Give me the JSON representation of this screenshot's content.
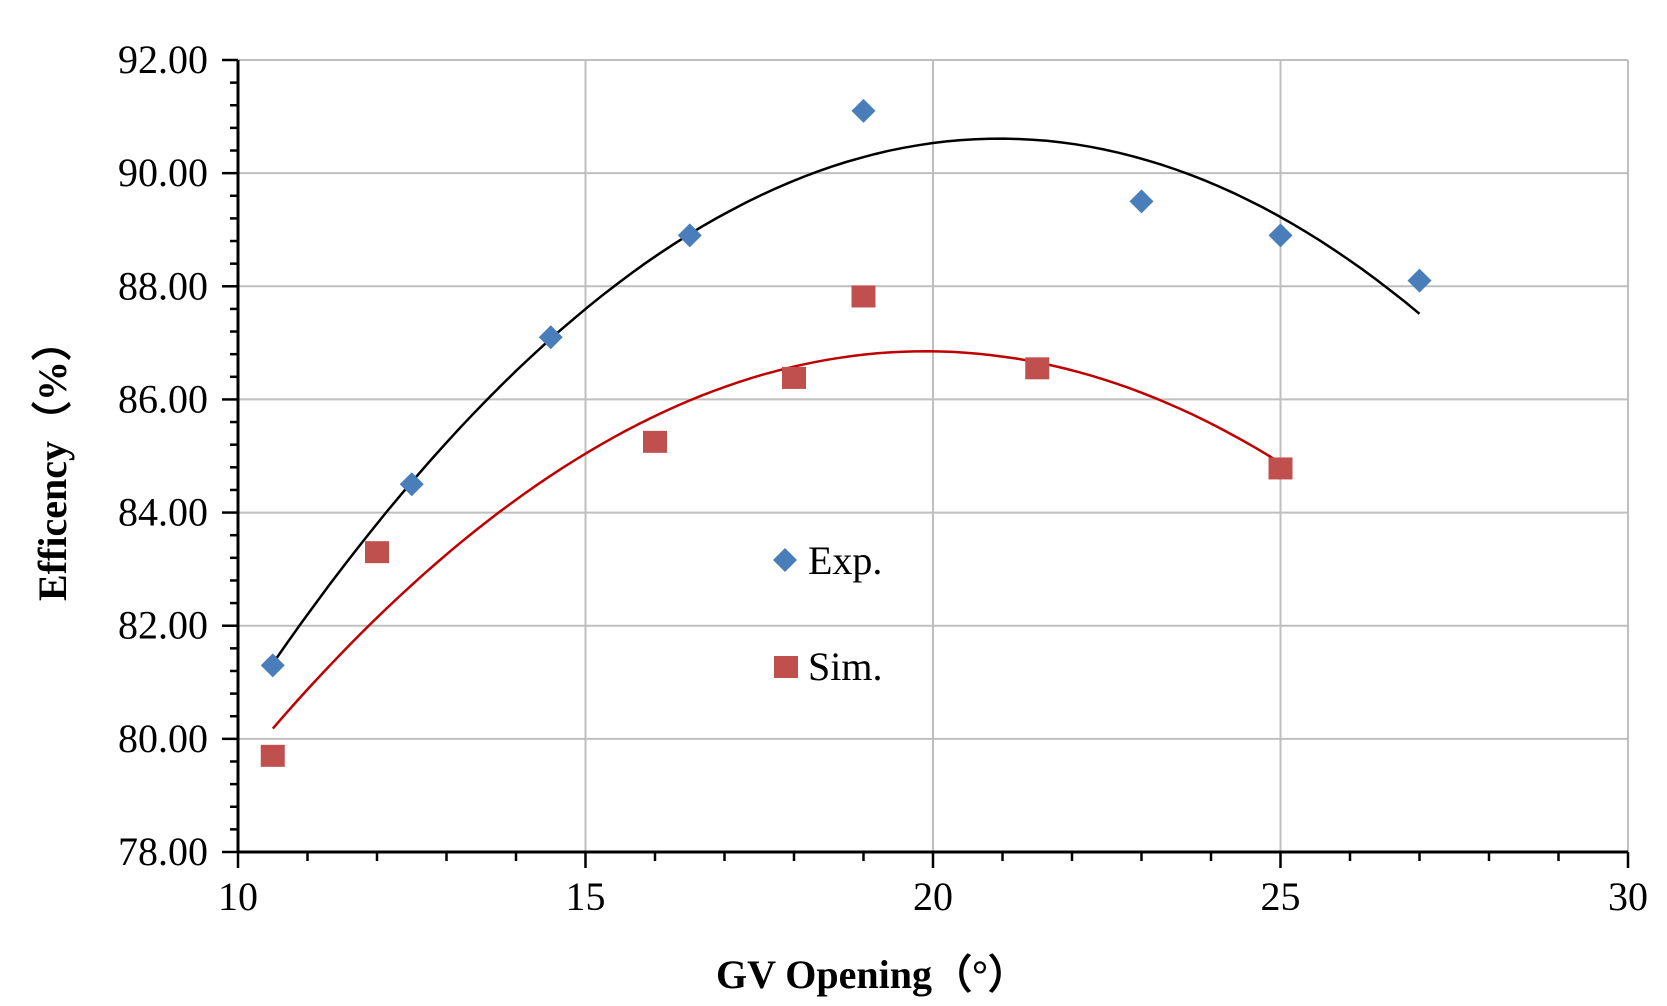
{
  "chart_data": {
    "type": "scatter",
    "title": "",
    "xlabel": "GV Opening（°）",
    "ylabel": "Efficency（%）",
    "xlim": [
      10,
      30
    ],
    "ylim": [
      78,
      92
    ],
    "xticks": [
      10,
      15,
      20,
      25,
      30
    ],
    "yticks": [
      78,
      80,
      82,
      84,
      86,
      88,
      90,
      92
    ],
    "xtick_labels": [
      "10",
      "15",
      "20",
      "25",
      "30"
    ],
    "ytick_labels": [
      "78.00",
      "80.00",
      "82.00",
      "84.00",
      "86.00",
      "88.00",
      "90.00",
      "92.00"
    ],
    "grid": true,
    "legend_position": "center",
    "series": [
      {
        "name": "Exp.",
        "marker": "diamond",
        "color": "#4a7ebb",
        "x": [
          10.5,
          12.5,
          14.5,
          16.5,
          19,
          23,
          25,
          27
        ],
        "y": [
          81.3,
          84.5,
          87.1,
          88.9,
          91.1,
          89.5,
          88.9,
          88.1
        ]
      },
      {
        "name": "Sim.",
        "marker": "square",
        "color": "#c0504d",
        "x": [
          10.5,
          12,
          16,
          18,
          19,
          21.5,
          25
        ],
        "y": [
          79.7,
          83.3,
          85.25,
          86.38,
          87.82,
          86.55,
          84.78
        ]
      }
    ],
    "trendlines": [
      {
        "name": "Exp. polynomial fit",
        "color": "#000000",
        "x_range": [
          10.5,
          27
        ],
        "x": [
          10.5,
          15,
          17,
          20,
          21,
          23,
          25,
          27
        ],
        "y": [
          81.3,
          87.6,
          89.4,
          90.5,
          90.6,
          90.2,
          89.15,
          87.6
        ]
      },
      {
        "name": "Sim. polynomial fit",
        "color": "#c00000",
        "x_range": [
          10.5,
          25
        ],
        "x": [
          10.5,
          12,
          15,
          18,
          19.7,
          21,
          23,
          25
        ],
        "y": [
          80.3,
          82.1,
          84.8,
          86.6,
          87.0,
          86.85,
          86.1,
          84.8
        ]
      }
    ]
  }
}
